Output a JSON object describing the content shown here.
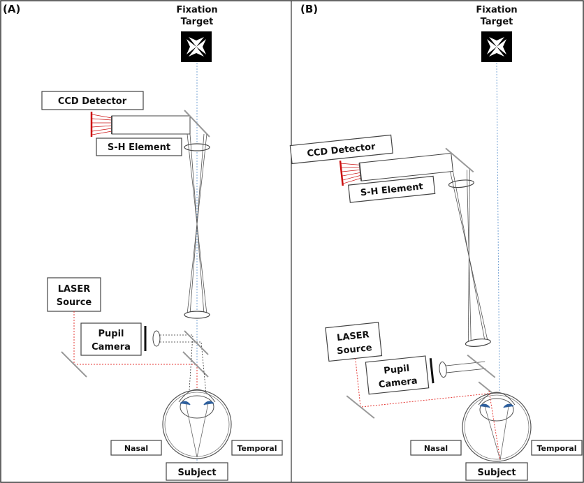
{
  "panels": [
    {
      "tag": "(A)",
      "fixation_line1": "Fixation",
      "fixation_line2": "Target",
      "ccd": "CCD Detector",
      "sh": "S-H Element",
      "laser_line1": "LASER",
      "laser_line2": "Source",
      "pupil_line1": "Pupil",
      "pupil_line2": "Camera",
      "nasal": "Nasal",
      "temporal": "Temporal",
      "subject": "Subject"
    },
    {
      "tag": "(B)",
      "fixation_line1": "Fixation",
      "fixation_line2": "Target",
      "ccd": "CCD Detector",
      "sh": "S-H Element",
      "laser_line1": "LASER",
      "laser_line2": "Source",
      "pupil_line1": "Pupil",
      "pupil_line2": "Camera",
      "nasal": "Nasal",
      "temporal": "Temporal",
      "subject": "Subject"
    }
  ],
  "colors": {
    "frame": "#333333",
    "laser": "#e53935",
    "detector": "#cc1111",
    "axis": "#7aa6d6",
    "iris": "#2d5f9e",
    "mirror": "#999999"
  }
}
